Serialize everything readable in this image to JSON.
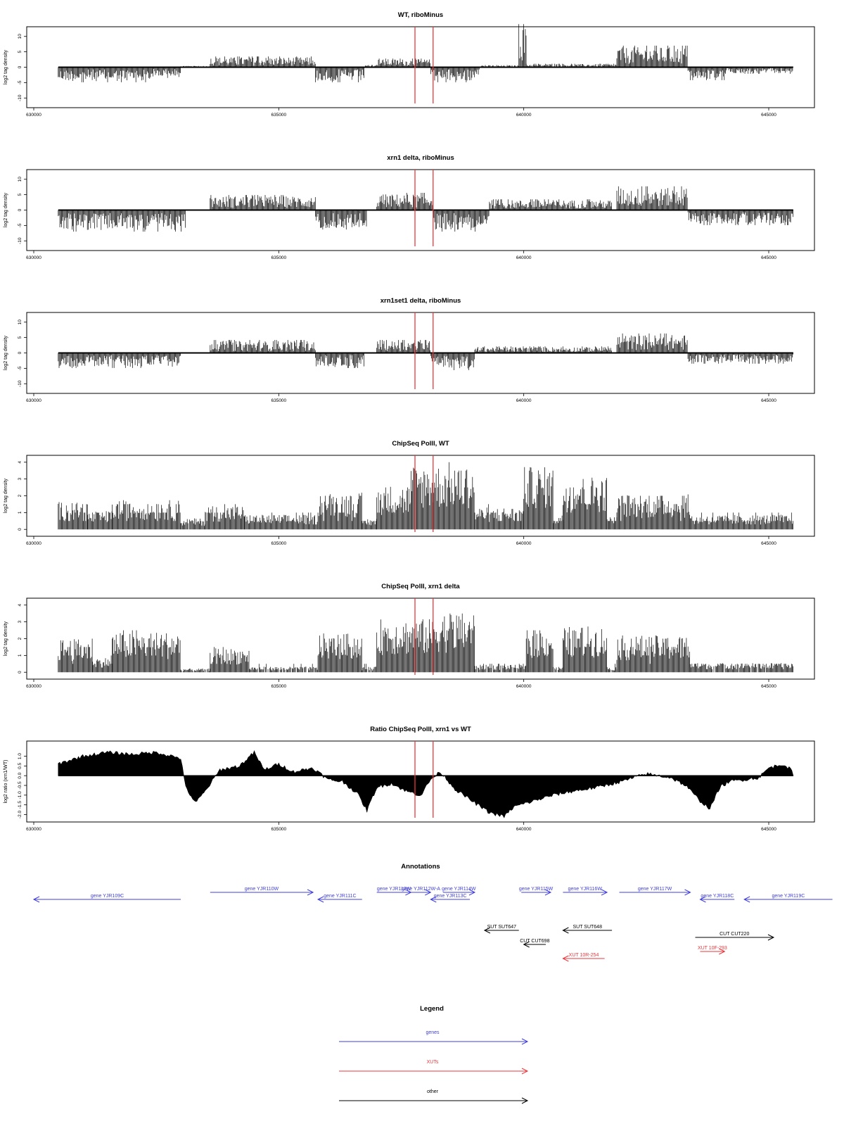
{
  "chart_data": [
    {
      "type": "area",
      "title": "WT, riboMinus",
      "ylabel": "log2 tag density",
      "xlim": [
        630000,
        645500
      ],
      "ylim": [
        -12,
        12
      ],
      "yticks": [
        -10,
        -5,
        0,
        5,
        10
      ],
      "xticks": [
        630000,
        635000,
        640000,
        645000
      ],
      "vlines": [
        637780,
        638150
      ],
      "vline_color": "#e8373c",
      "segments": [
        {
          "from": 630500,
          "to": 632400,
          "value": -3.5
        },
        {
          "from": 632400,
          "to": 633000,
          "value": -2.5
        },
        {
          "from": 633000,
          "to": 633600,
          "value": 0.3
        },
        {
          "from": 633600,
          "to": 635750,
          "value": 2.5
        },
        {
          "from": 635750,
          "to": 636750,
          "value": -3.5
        },
        {
          "from": 636750,
          "to": 637000,
          "value": 0.5
        },
        {
          "from": 637000,
          "to": 638100,
          "value": 2.0
        },
        {
          "from": 638100,
          "to": 639100,
          "value": -3.5
        },
        {
          "from": 639100,
          "to": 639900,
          "value": 0.5
        },
        {
          "from": 639900,
          "to": 640050,
          "value": 10
        },
        {
          "from": 640050,
          "to": 641900,
          "value": 0.8
        },
        {
          "from": 641900,
          "to": 643350,
          "value": 5.0
        },
        {
          "from": 643350,
          "to": 644100,
          "value": -3.0
        },
        {
          "from": 644100,
          "to": 645500,
          "value": -1.5
        }
      ]
    },
    {
      "type": "area",
      "title": "xrn1 delta, riboMinus",
      "ylabel": "log2 tag density",
      "xlim": [
        630000,
        645500
      ],
      "ylim": [
        -12,
        12
      ],
      "yticks": [
        -10,
        -5,
        0,
        5,
        10
      ],
      "xticks": [
        630000,
        635000,
        640000,
        645000
      ],
      "vlines": [
        637780,
        638150
      ],
      "vline_color": "#e8373c",
      "segments": [
        {
          "from": 630500,
          "to": 633100,
          "value": -5.0
        },
        {
          "from": 633600,
          "to": 635750,
          "value": 3.5
        },
        {
          "from": 635750,
          "to": 636800,
          "value": -4.5
        },
        {
          "from": 637000,
          "to": 638150,
          "value": 4.0
        },
        {
          "from": 638150,
          "to": 639300,
          "value": -5.0
        },
        {
          "from": 639300,
          "to": 641800,
          "value": 2.5
        },
        {
          "from": 641900,
          "to": 643350,
          "value": 5.5
        },
        {
          "from": 643350,
          "to": 645500,
          "value": -3.5
        }
      ]
    },
    {
      "type": "area",
      "title": "xrn1set1 delta, riboMinus",
      "ylabel": "log2 tag density",
      "xlim": [
        630000,
        645500
      ],
      "ylim": [
        -12,
        12
      ],
      "yticks": [
        -10,
        -5,
        0,
        5,
        10
      ],
      "xticks": [
        630000,
        635000,
        640000,
        645000
      ],
      "vlines": [
        637780,
        638150
      ],
      "vline_color": "#e8373c",
      "segments": [
        {
          "from": 630500,
          "to": 633000,
          "value": -3.5
        },
        {
          "from": 633600,
          "to": 635750,
          "value": 3.0
        },
        {
          "from": 635750,
          "to": 636750,
          "value": -3.5
        },
        {
          "from": 637000,
          "to": 638100,
          "value": 3.0
        },
        {
          "from": 638100,
          "to": 639000,
          "value": -4.0
        },
        {
          "from": 639000,
          "to": 641800,
          "value": 1.5
        },
        {
          "from": 641900,
          "to": 643350,
          "value": 4.5
        },
        {
          "from": 643350,
          "to": 645500,
          "value": -2.5
        }
      ]
    },
    {
      "type": "bar",
      "title": "ChipSeq PolII, WT",
      "ylabel": "log2 tag density",
      "xlim": [
        630000,
        645500
      ],
      "ylim": [
        -0.2,
        4.2
      ],
      "yticks": [
        0,
        1,
        2,
        3,
        4
      ],
      "xticks": [
        630000,
        635000,
        640000,
        645000
      ],
      "vlines": [
        637780,
        638150
      ],
      "vline_color": "#e8373c",
      "segments": [
        {
          "from": 630500,
          "to": 631100,
          "value": 1.5
        },
        {
          "from": 631100,
          "to": 631600,
          "value": 1.0
        },
        {
          "from": 631600,
          "to": 633000,
          "value": 1.6
        },
        {
          "from": 633000,
          "to": 633500,
          "value": 0.6
        },
        {
          "from": 633500,
          "to": 634300,
          "value": 1.3
        },
        {
          "from": 634300,
          "to": 635800,
          "value": 0.8
        },
        {
          "from": 635800,
          "to": 636700,
          "value": 2.0
        },
        {
          "from": 636700,
          "to": 637000,
          "value": 0.6
        },
        {
          "from": 637000,
          "to": 637700,
          "value": 2.4
        },
        {
          "from": 637700,
          "to": 639000,
          "value": 3.5
        },
        {
          "from": 639000,
          "to": 640000,
          "value": 1.2
        },
        {
          "from": 640000,
          "to": 640600,
          "value": 3.4
        },
        {
          "from": 640600,
          "to": 640800,
          "value": 0.8
        },
        {
          "from": 640800,
          "to": 641700,
          "value": 2.9
        },
        {
          "from": 641700,
          "to": 641900,
          "value": 0.7
        },
        {
          "from": 641900,
          "to": 643400,
          "value": 1.9
        },
        {
          "from": 643400,
          "to": 645500,
          "value": 0.8
        }
      ]
    },
    {
      "type": "bar",
      "title": "ChipSeq PolII, xrn1 delta",
      "ylabel": "log2 tag density",
      "xlim": [
        630000,
        645500
      ],
      "ylim": [
        -0.2,
        4.2
      ],
      "yticks": [
        0,
        1,
        2,
        3,
        4
      ],
      "xticks": [
        630000,
        635000,
        640000,
        645000
      ],
      "vlines": [
        637780,
        638150
      ],
      "vline_color": "#e8373c",
      "segments": [
        {
          "from": 630500,
          "to": 631200,
          "value": 1.8
        },
        {
          "from": 631200,
          "to": 631600,
          "value": 0.8
        },
        {
          "from": 631600,
          "to": 633000,
          "value": 2.2
        },
        {
          "from": 633000,
          "to": 633600,
          "value": 0.2
        },
        {
          "from": 633600,
          "to": 634400,
          "value": 1.3
        },
        {
          "from": 634400,
          "to": 635800,
          "value": 0.3
        },
        {
          "from": 635800,
          "to": 636700,
          "value": 2.1
        },
        {
          "from": 636700,
          "to": 637000,
          "value": 0.3
        },
        {
          "from": 637000,
          "to": 638150,
          "value": 2.9
        },
        {
          "from": 638150,
          "to": 639000,
          "value": 3.3
        },
        {
          "from": 639000,
          "to": 640050,
          "value": 0.4
        },
        {
          "from": 640050,
          "to": 640600,
          "value": 2.4
        },
        {
          "from": 640600,
          "to": 640800,
          "value": 0.3
        },
        {
          "from": 640800,
          "to": 641700,
          "value": 2.5
        },
        {
          "from": 641700,
          "to": 641900,
          "value": 0.3
        },
        {
          "from": 641900,
          "to": 643400,
          "value": 2.0
        },
        {
          "from": 643400,
          "to": 645500,
          "value": 0.5
        }
      ]
    },
    {
      "type": "area",
      "title": "Ratio ChipSeq PolII, xrn1 vs WT",
      "ylabel": "log2 ratio (xrn1/WT)",
      "xlim": [
        630000,
        645500
      ],
      "ylim": [
        -2.2,
        1.6
      ],
      "yticks": [
        -2.0,
        -1.5,
        -1.0,
        -0.5,
        0.0,
        0.5,
        1.0
      ],
      "xticks": [
        630000,
        635000,
        640000,
        645000
      ],
      "vlines": [
        637780,
        638150
      ],
      "vline_color": "#e8373c",
      "x": [
        630500,
        631000,
        631500,
        632000,
        632500,
        633000,
        633100,
        633300,
        633500,
        633800,
        634200,
        634500,
        634700,
        635000,
        635300,
        635700,
        636000,
        636300,
        636600,
        636800,
        637000,
        637300,
        637600,
        637900,
        638100,
        638300,
        638600,
        639000,
        639300,
        639600,
        639800,
        640200,
        640600,
        641000,
        641500,
        642000,
        642500,
        643000,
        643300,
        643600,
        643800,
        644000,
        644200,
        644500,
        644800,
        645000,
        645300,
        645500
      ],
      "y": [
        0.6,
        1.0,
        1.2,
        1.1,
        1.2,
        0.9,
        -0.6,
        -1.4,
        -0.8,
        0.3,
        0.5,
        1.2,
        0.3,
        0.6,
        0.2,
        0.4,
        -0.2,
        -0.3,
        -0.9,
        -1.8,
        -0.6,
        -0.4,
        -0.8,
        -1.0,
        -0.2,
        0.2,
        -0.7,
        -1.4,
        -1.9,
        -2.1,
        -1.6,
        -1.3,
        -1.0,
        -0.8,
        -0.6,
        -0.3,
        0.1,
        -0.1,
        -0.5,
        -1.3,
        -1.7,
        -0.6,
        -0.3,
        -0.2,
        -0.1,
        0.4,
        0.6,
        0.2
      ]
    }
  ],
  "annotations": {
    "title": "Annotations",
    "rows": [
      {
        "label": "gene YJR109C",
        "from": 630000,
        "to": 633000,
        "dir": "left",
        "type": "gene",
        "row": 0
      },
      {
        "label": "gene YJR110W",
        "from": 633600,
        "to": 635700,
        "dir": "right",
        "type": "gene",
        "row": -1
      },
      {
        "label": "gene YJR111C",
        "from": 635800,
        "to": 636700,
        "dir": "left",
        "type": "gene",
        "row": 0
      },
      {
        "label": "gene YJR112W",
        "from": 637000,
        "to": 637700,
        "dir": "right",
        "type": "gene",
        "row": -1
      },
      {
        "label": "gene YJR112W-A",
        "from": 637700,
        "to": 638100,
        "dir": "right",
        "type": "gene",
        "row": -1
      },
      {
        "label": "gene YJR113C",
        "from": 638100,
        "to": 638900,
        "dir": "left",
        "type": "gene",
        "row": 0
      },
      {
        "label": "gene YJR114W",
        "from": 638350,
        "to": 639000,
        "dir": "right",
        "type": "gene",
        "row": -1
      },
      {
        "label": "gene YJR115W",
        "from": 639950,
        "to": 640550,
        "dir": "right",
        "type": "gene",
        "row": -1
      },
      {
        "label": "gene YJR116W",
        "from": 640800,
        "to": 641700,
        "dir": "right",
        "type": "gene",
        "row": -1
      },
      {
        "label": "gene YJR117W",
        "from": 641950,
        "to": 643400,
        "dir": "right",
        "type": "gene",
        "row": -1
      },
      {
        "label": "gene YJR118C",
        "from": 643600,
        "to": 644300,
        "dir": "left",
        "type": "gene",
        "row": 0
      },
      {
        "label": "gene YJR119C",
        "from": 644500,
        "to": 646300,
        "dir": "left",
        "type": "gene",
        "row": 0
      },
      {
        "label": "SUT SUT647",
        "from": 639200,
        "to": 639900,
        "dir": "left",
        "type": "other",
        "row": 4
      },
      {
        "label": "SUT SUT648",
        "from": 640800,
        "to": 641800,
        "dir": "left",
        "type": "other",
        "row": 4
      },
      {
        "label": "CUT CUT698",
        "from": 640000,
        "to": 640450,
        "dir": "left",
        "type": "other",
        "row": 6
      },
      {
        "label": "XUT 10R-254",
        "from": 640800,
        "to": 641650,
        "dir": "left",
        "type": "xut",
        "row": 8
      },
      {
        "label": "CUT CUT220",
        "from": 643500,
        "to": 645100,
        "dir": "right",
        "type": "other",
        "row": 5
      },
      {
        "label": "XUT 10F-293",
        "from": 643600,
        "to": 644100,
        "dir": "right",
        "type": "xut",
        "row": 7
      }
    ]
  },
  "legend": {
    "title": "Legend",
    "items": [
      {
        "label": "genes",
        "color": "#3f3fd8"
      },
      {
        "label": "XUTs",
        "color": "#e8373c"
      },
      {
        "label": "other",
        "color": "#000000"
      }
    ]
  },
  "colors": {
    "gene": "#3f3fd8",
    "xut": "#e8373c",
    "other": "#000000"
  }
}
